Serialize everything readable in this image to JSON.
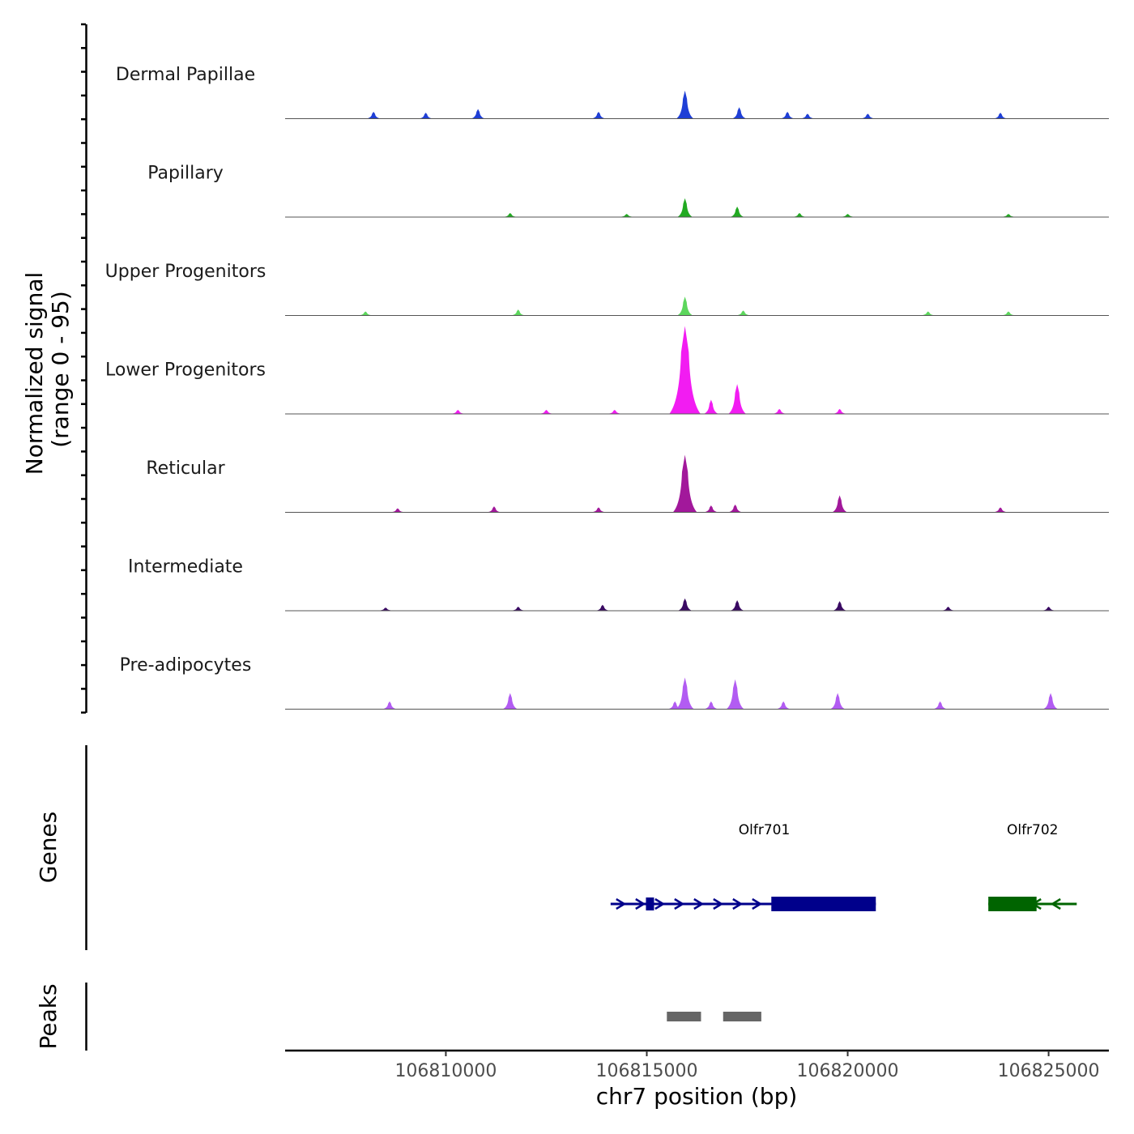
{
  "chart_data": {
    "type": "area",
    "description_y_title": "Normalized signal",
    "y_range_label": "(range 0 - 95)",
    "y_range": [
      0,
      95
    ],
    "x_title": "chr7 position (bp)",
    "x_range": [
      106806000,
      106826500
    ],
    "x_ticks": [
      106810000,
      106815000,
      106820000,
      106825000
    ],
    "x_tick_labels": [
      "106810000",
      "106815000",
      "106820000",
      "106825000"
    ],
    "tracks": [
      {
        "name": "Dermal Papillae",
        "color": "#1f3fd6",
        "peaks": [
          [
            106815950,
            30
          ],
          [
            106817300,
            12
          ],
          [
            106810800,
            10
          ],
          [
            106808200,
            7
          ],
          [
            106813800,
            7
          ],
          [
            106818500,
            7
          ],
          [
            106823800,
            6
          ],
          [
            106809500,
            6
          ],
          [
            106819000,
            5
          ],
          [
            106820500,
            5
          ]
        ]
      },
      {
        "name": "Papillary",
        "color": "#22aa22",
        "peaks": [
          [
            106815950,
            20
          ],
          [
            106817250,
            11
          ],
          [
            106818800,
            4
          ],
          [
            106811600,
            4
          ],
          [
            106814500,
            3
          ],
          [
            106820000,
            3
          ],
          [
            106824000,
            3
          ]
        ]
      },
      {
        "name": "Upper Progenitors",
        "color": "#5cd65c",
        "peaks": [
          [
            106815950,
            20
          ],
          [
            106811800,
            6
          ],
          [
            106817400,
            5
          ],
          [
            106808000,
            4
          ],
          [
            106822000,
            4
          ],
          [
            106824000,
            4
          ]
        ]
      },
      {
        "name": "Lower Progenitors",
        "color": "#f21cf2",
        "peaks": [
          [
            106815950,
            95
          ],
          [
            106817250,
            32
          ],
          [
            106816600,
            15
          ],
          [
            106818300,
            5
          ],
          [
            106819800,
            5
          ],
          [
            106810300,
            4
          ],
          [
            106812500,
            4
          ],
          [
            106814200,
            4
          ]
        ]
      },
      {
        "name": "Reticular",
        "color": "#a2189b",
        "peaks": [
          [
            106815950,
            62
          ],
          [
            106819800,
            18
          ],
          [
            106817200,
            8
          ],
          [
            106816600,
            7
          ],
          [
            106811200,
            6
          ],
          [
            106813800,
            5
          ],
          [
            106823800,
            5
          ],
          [
            106808800,
            4
          ]
        ]
      },
      {
        "name": "Intermediate",
        "color": "#3a0a63",
        "peaks": [
          [
            106815950,
            13
          ],
          [
            106817250,
            11
          ],
          [
            106819800,
            10
          ],
          [
            106813900,
            6
          ],
          [
            106811800,
            4
          ],
          [
            106822500,
            4
          ],
          [
            106825000,
            4
          ],
          [
            106808500,
            3
          ]
        ]
      },
      {
        "name": "Pre-adipocytes",
        "color": "#b25cf2",
        "peaks": [
          [
            106815950,
            34
          ],
          [
            106817200,
            32
          ],
          [
            106811600,
            17
          ],
          [
            106819750,
            17
          ],
          [
            106825050,
            17
          ],
          [
            106808600,
            8
          ],
          [
            106818400,
            8
          ],
          [
            106816600,
            8
          ],
          [
            106822300,
            8
          ],
          [
            106815700,
            8
          ]
        ]
      }
    ],
    "genes": [
      {
        "name": "Olfr701",
        "strand": "+",
        "color": "#00008b",
        "start": 106814100,
        "end": 106820700,
        "cds_start": 106818100,
        "cds_end": 106820700
      },
      {
        "name": "Olfr702",
        "strand": "-",
        "color": "#006400",
        "start": 106823500,
        "end": 106825700,
        "cds_start": 106823500,
        "cds_end": 106824700
      }
    ],
    "genes_title": "Genes",
    "peaks_title": "Peaks",
    "peak_regions": [
      [
        106815500,
        106816350
      ],
      [
        106816900,
        106817850
      ]
    ],
    "peak_color": "#666666"
  }
}
